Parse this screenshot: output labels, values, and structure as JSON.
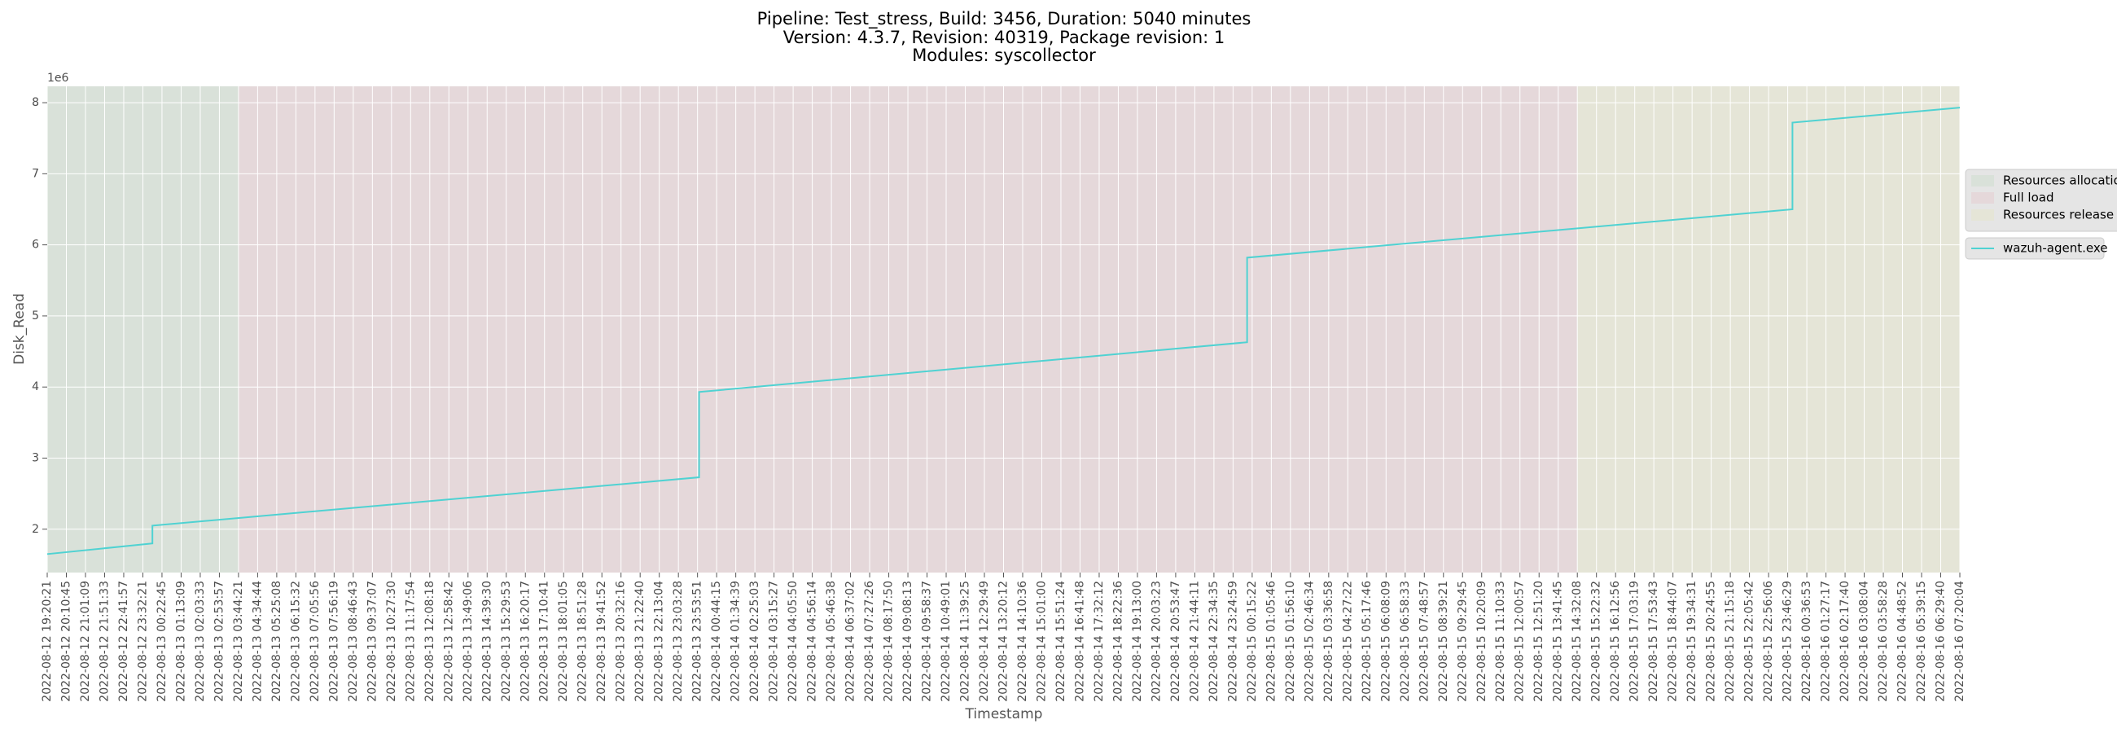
{
  "chart_data": {
    "type": "line",
    "title": [
      "Pipeline: Test_stress, Build: 3456, Duration: 5040 minutes",
      "Version: 4.3.7, Revision: 40319, Package revision: 1",
      "Modules: syscollector"
    ],
    "xlabel": "Timestamp",
    "ylabel": "Disk_Read",
    "y_offset_label": "1e6",
    "grid": true,
    "legend": "right",
    "xlim": [
      "2022-08-12 19:20:21",
      "2022-08-16 07:20:04"
    ],
    "xticks": [
      "2022-08-12 19:20:21",
      "2022-08-12 20:10:45",
      "2022-08-12 21:01:09",
      "2022-08-12 21:51:33",
      "2022-08-12 22:41:57",
      "2022-08-12 23:32:21",
      "2022-08-13 00:22:45",
      "2022-08-13 01:13:09",
      "2022-08-13 02:03:33",
      "2022-08-13 02:53:57",
      "2022-08-13 03:44:21",
      "2022-08-13 04:34:44",
      "2022-08-13 05:25:08",
      "2022-08-13 06:15:32",
      "2022-08-13 07:05:56",
      "2022-08-13 07:56:19",
      "2022-08-13 08:46:43",
      "2022-08-13 09:37:07",
      "2022-08-13 10:27:30",
      "2022-08-13 11:17:54",
      "2022-08-13 12:08:18",
      "2022-08-13 12:58:42",
      "2022-08-13 13:49:06",
      "2022-08-13 14:39:30",
      "2022-08-13 15:29:53",
      "2022-08-13 16:20:17",
      "2022-08-13 17:10:41",
      "2022-08-13 18:01:05",
      "2022-08-13 18:51:28",
      "2022-08-13 19:41:52",
      "2022-08-13 20:32:16",
      "2022-08-13 21:22:40",
      "2022-08-13 22:13:04",
      "2022-08-13 23:03:28",
      "2022-08-13 23:53:51",
      "2022-08-14 00:44:15",
      "2022-08-14 01:34:39",
      "2022-08-14 02:25:03",
      "2022-08-14 03:15:27",
      "2022-08-14 04:05:50",
      "2022-08-14 04:56:14",
      "2022-08-14 05:46:38",
      "2022-08-14 06:37:02",
      "2022-08-14 07:27:26",
      "2022-08-14 08:17:50",
      "2022-08-14 09:08:13",
      "2022-08-14 09:58:37",
      "2022-08-14 10:49:01",
      "2022-08-14 11:39:25",
      "2022-08-14 12:29:49",
      "2022-08-14 13:20:12",
      "2022-08-14 14:10:36",
      "2022-08-14 15:01:00",
      "2022-08-14 15:51:24",
      "2022-08-14 16:41:48",
      "2022-08-14 17:32:12",
      "2022-08-14 18:22:36",
      "2022-08-14 19:13:00",
      "2022-08-14 20:03:23",
      "2022-08-14 20:53:47",
      "2022-08-14 21:44:11",
      "2022-08-14 22:34:35",
      "2022-08-14 23:24:59",
      "2022-08-15 00:15:22",
      "2022-08-15 01:05:46",
      "2022-08-15 01:56:10",
      "2022-08-15 02:46:34",
      "2022-08-15 03:36:58",
      "2022-08-15 04:27:22",
      "2022-08-15 05:17:46",
      "2022-08-15 06:08:09",
      "2022-08-15 06:58:33",
      "2022-08-15 07:48:57",
      "2022-08-15 08:39:21",
      "2022-08-15 09:29:45",
      "2022-08-15 10:20:09",
      "2022-08-15 11:10:33",
      "2022-08-15 12:00:57",
      "2022-08-15 12:51:20",
      "2022-08-15 13:41:45",
      "2022-08-15 14:32:08",
      "2022-08-15 15:22:32",
      "2022-08-15 16:12:56",
      "2022-08-15 17:03:19",
      "2022-08-15 17:53:43",
      "2022-08-15 18:44:07",
      "2022-08-15 19:34:31",
      "2022-08-15 20:24:55",
      "2022-08-15 21:15:18",
      "2022-08-15 22:05:42",
      "2022-08-15 22:56:06",
      "2022-08-15 23:46:29",
      "2022-08-16 00:36:53",
      "2022-08-16 01:27:17",
      "2022-08-16 02:17:40",
      "2022-08-16 03:08:04",
      "2022-08-16 03:58:28",
      "2022-08-16 04:48:52",
      "2022-08-16 05:39:15",
      "2022-08-16 06:29:40",
      "2022-08-16 07:20:04"
    ],
    "ylim": [
      1390000,
      8230000
    ],
    "yticks": [
      {
        "value": 2000000,
        "label": "2"
      },
      {
        "value": 3000000,
        "label": "3"
      },
      {
        "value": 4000000,
        "label": "4"
      },
      {
        "value": 5000000,
        "label": "5"
      },
      {
        "value": 6000000,
        "label": "6"
      },
      {
        "value": 7000000,
        "label": "7"
      },
      {
        "value": 8000000,
        "label": "8"
      }
    ],
    "spans": [
      {
        "name": "Resources allocation",
        "color": "#d9e1d9",
        "start": "2022-08-12 19:20:21",
        "end": "2022-08-13 03:44:21"
      },
      {
        "name": "Full load",
        "color": "#e5d8da",
        "start": "2022-08-13 03:44:21",
        "end": "2022-08-15 14:32:08"
      },
      {
        "name": "Resources release",
        "color": "#e5e5d7",
        "start": "2022-08-15 14:32:08",
        "end": "2022-08-16 07:20:04"
      }
    ],
    "series": [
      {
        "name": "wazuh-agent.exe",
        "color": "#4fd2d2",
        "x": [
          "2022-08-12 19:20:21",
          "2022-08-12 23:57:30",
          "2022-08-12 23:57:30",
          "2022-08-13 23:58:00",
          "2022-08-13 23:58:00",
          "2022-08-15 00:02:00",
          "2022-08-15 00:02:00",
          "2022-08-15 23:59:00",
          "2022-08-15 23:59:00",
          "2022-08-16 07:20:04"
        ],
        "values": [
          1650000,
          1800000,
          2050000,
          2730000,
          3930000,
          4630000,
          5820000,
          6500000,
          7720000,
          7930000
        ]
      }
    ]
  }
}
